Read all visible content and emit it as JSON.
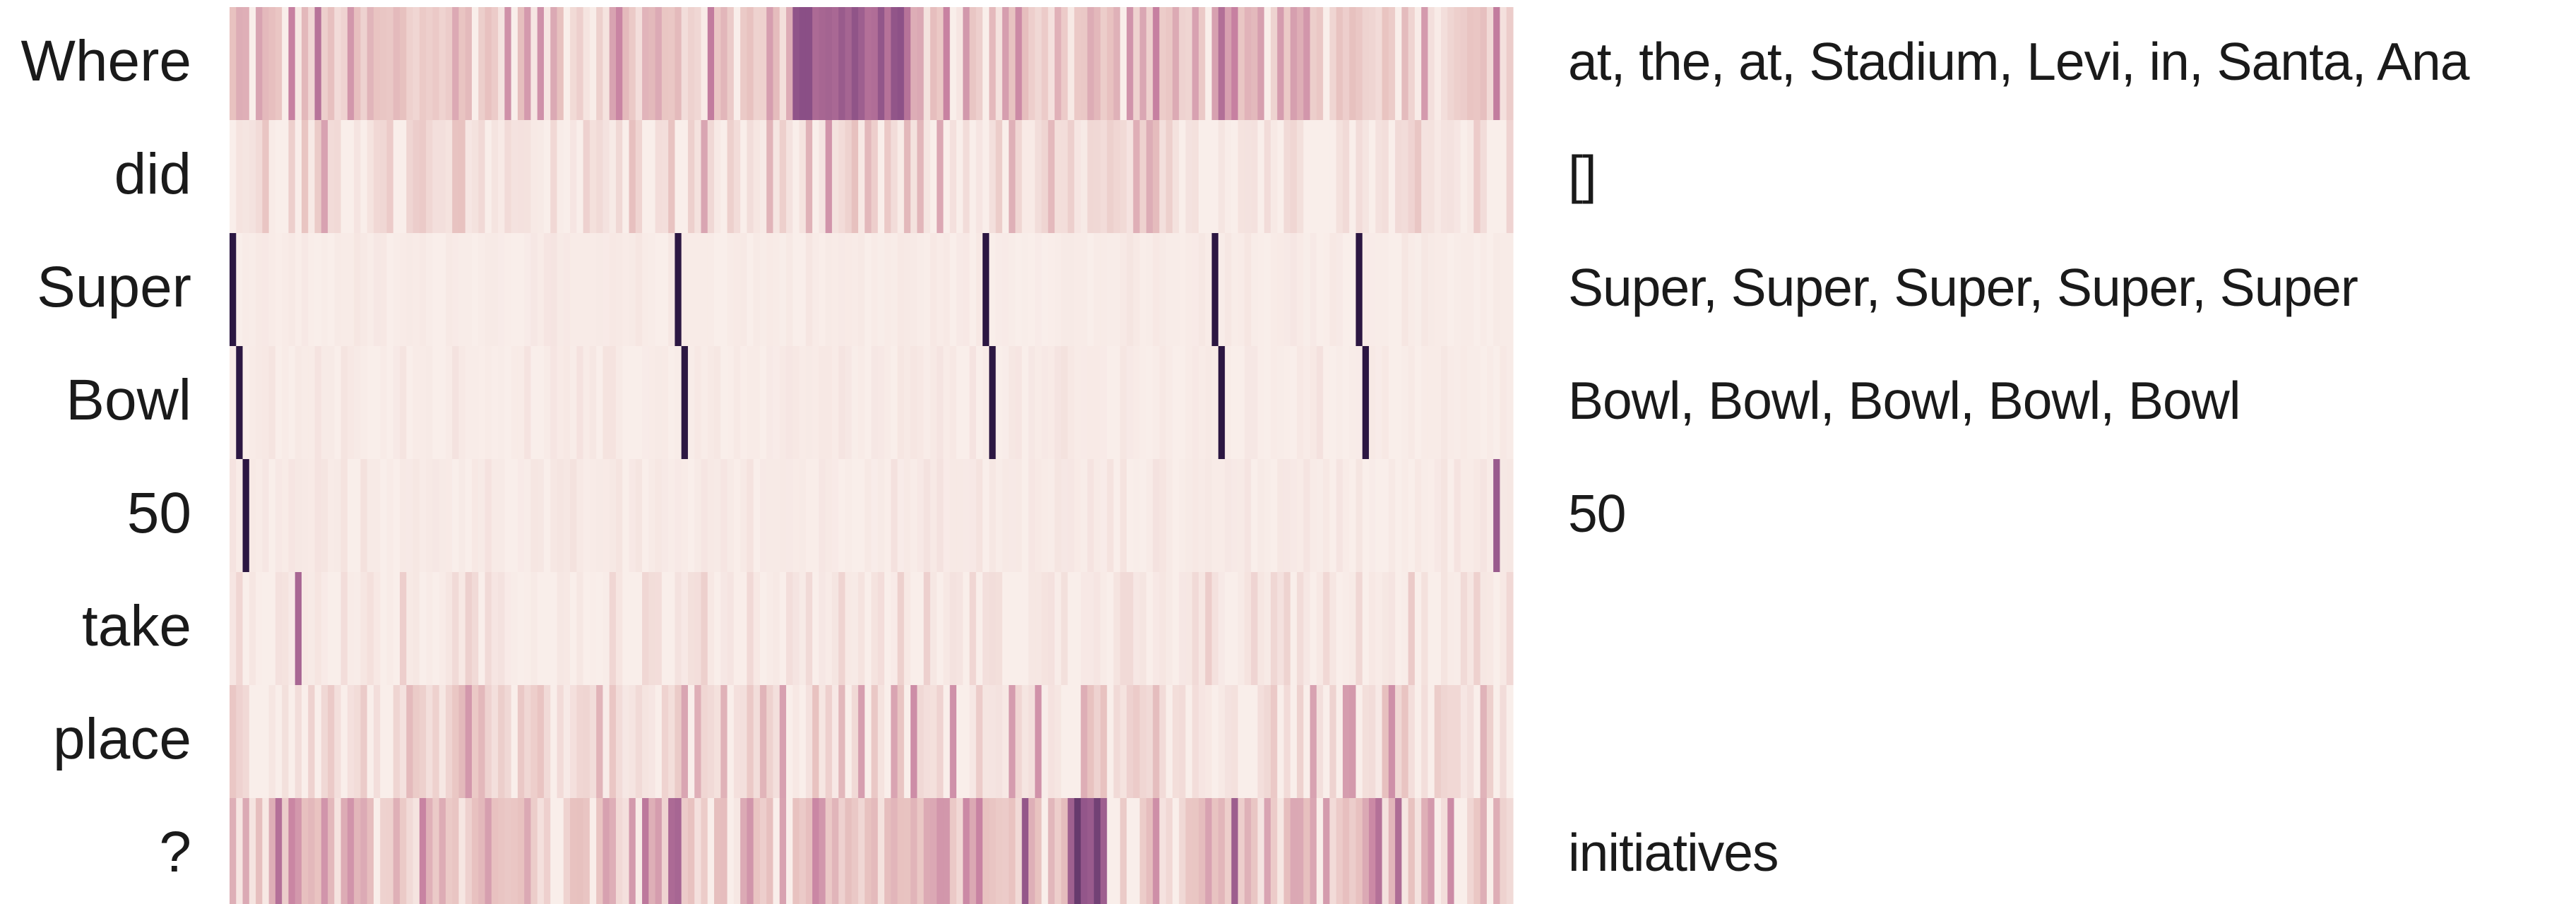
{
  "chart_data": {
    "type": "heatmap",
    "title": "",
    "xlabel": "",
    "ylabel": "",
    "rows": [
      "Where",
      "did",
      "Super",
      "Bowl",
      "50",
      "take",
      "place",
      "?"
    ],
    "annotations": [
      "at, the, at, Stadium, Levi, in, Santa, Ana",
      "[]",
      "Super, Super, Super, Super, Super",
      "Bowl, Bowl, Bowl, Bowl, Bowl",
      "50",
      "",
      "",
      "initiatives"
    ],
    "n_columns": 196,
    "value_range": [
      0,
      1
    ],
    "colormap": {
      "low": "#f9eeea",
      "mid_low": "#e8c2c0",
      "mid": "#c67fa0",
      "mid_high": "#8a4f86",
      "high": "#2c1742"
    },
    "row_profiles": [
      {
        "row": "Where",
        "base": 0.25,
        "spread": 0.55,
        "peaks": [
          {
            "from": 86,
            "to": 103,
            "value": 0.85
          }
        ]
      },
      {
        "row": "did",
        "base": 0.08,
        "spread": 0.45,
        "peaks": []
      },
      {
        "row": "Super",
        "base": 0.02,
        "spread": 0.05,
        "peaks": [
          {
            "at": 0,
            "value": 1.0
          },
          {
            "at": 68,
            "value": 1.0
          },
          {
            "at": 115,
            "value": 1.0
          },
          {
            "at": 150,
            "value": 1.0
          },
          {
            "at": 172,
            "value": 1.0
          }
        ]
      },
      {
        "row": "Bowl",
        "base": 0.02,
        "spread": 0.08,
        "peaks": [
          {
            "at": 1,
            "value": 1.0
          },
          {
            "at": 69,
            "value": 1.0
          },
          {
            "at": 116,
            "value": 1.0
          },
          {
            "at": 151,
            "value": 1.0
          },
          {
            "at": 173,
            "value": 1.0
          }
        ]
      },
      {
        "row": "50",
        "base": 0.03,
        "spread": 0.07,
        "peaks": [
          {
            "at": 2,
            "value": 1.0
          },
          {
            "at": 193,
            "value": 0.75
          }
        ]
      },
      {
        "row": "take",
        "base": 0.04,
        "spread": 0.22,
        "peaks": [
          {
            "at": 10,
            "value": 0.7
          }
        ]
      },
      {
        "row": "place",
        "base": 0.1,
        "spread": 0.5,
        "peaks": []
      },
      {
        "row": "?",
        "base": 0.3,
        "spread": 0.6,
        "peaks": [
          {
            "from": 128,
            "to": 133,
            "value": 0.9
          }
        ]
      }
    ]
  }
}
